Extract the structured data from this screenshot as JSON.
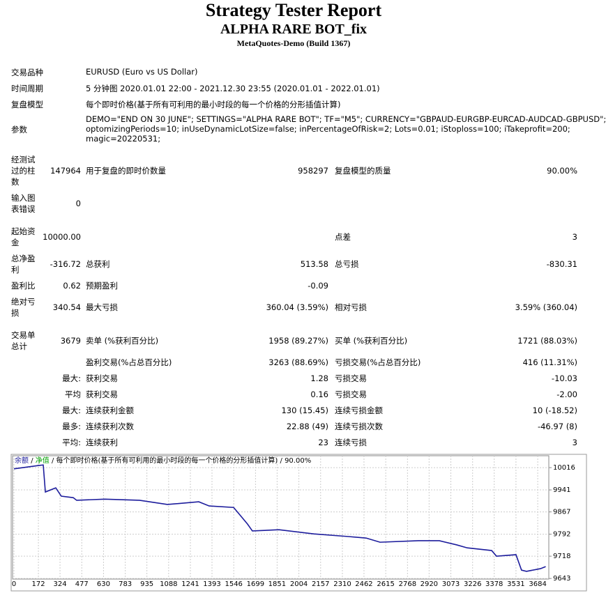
{
  "header": {
    "title": "Strategy Tester Report",
    "subtitle": "ALPHA RARE BOT_fix",
    "server": "MetaQuotes-Demo (Build 1367)"
  },
  "info": [
    {
      "label": "交易品种",
      "value": "EURUSD (Euro vs US Dollar)"
    },
    {
      "label": "时间周期",
      "value": "5 分钟图 2020.01.01 22:00 - 2021.12.30 23:55 (2020.01.01 - 2022.01.01)"
    },
    {
      "label": "复盘模型",
      "value": "每个即时价格(基于所有可利用的最小时段的每一个价格的分形插值计算)"
    },
    {
      "label": "参数",
      "lines": [
        "DEMO=\"END ON 30 JUNE\"; SETTINGS=\"ALPHA RARE BOT\"; TF=\"M5\"; CURRENCY=\"GBPAUD-EURGBP-EURCAD-AUDCAD-GBPUSD\";",
        "optomizingPeriods=10; inUseDynamicLotSize=false; inPercentageOfRisk=2; Lots=0.01; iStoploss=100; iTakeprofit=200;",
        "magic=20220531;"
      ]
    }
  ],
  "stats": [
    {
      "label1": "经测试过的柱数",
      "value1": "147964",
      "label2": "用于复盘的即时价数量",
      "value2": "958297",
      "label3": "复盘模型的质量",
      "value3": "90.00%"
    },
    {
      "label1": "输入图表错误",
      "value1": "0"
    },
    {
      "label1": "起始资金",
      "value1": "10000.00",
      "label3": "点差",
      "value3": "3"
    },
    {
      "label1": "总净盈利",
      "value1": "-316.72",
      "label2": "总获利",
      "value2": "513.58",
      "label3": "总亏损",
      "value3": "-830.31"
    },
    {
      "label1": "盈利比",
      "value1": "0.62",
      "label2": "预期盈利",
      "value2": "-0.09"
    },
    {
      "label1": "绝对亏损",
      "value1": "340.54",
      "label2": "最大亏损",
      "value2": "360.04 (3.59%)",
      "label3": "相对亏损",
      "value3": "3.59% (360.04)"
    },
    {
      "label1": "交易单总计",
      "value1": "3679",
      "label2": "卖单 (%获利百分比)",
      "value2": "1958 (89.27%)",
      "label3": "买单 (%获利百分比)",
      "value3": "1721 (88.03%)"
    },
    {
      "label2": "盈利交易(%占总百分比)",
      "value2": "3263 (88.69%)",
      "label3": "亏损交易(%占总百分比)",
      "value3": "416 (11.31%)"
    },
    {
      "value1": "最大:",
      "label2": "获利交易",
      "value2": "1.28",
      "label3": "亏损交易",
      "value3": "-10.03"
    },
    {
      "value1": "平均",
      "label2": "获利交易",
      "value2": "0.16",
      "label3": "亏损交易",
      "value3": "-2.00"
    },
    {
      "value1": "最大:",
      "label2": "连续获利金额",
      "value2": "130 (15.45)",
      "label3": "连续亏损金额",
      "value3": "10 (-18.52)"
    },
    {
      "value1": "最多:",
      "label2": "连续获利次数",
      "value2": "22.88 (49)",
      "label3": "连续亏损次数",
      "value3": "-46.97 (8)"
    },
    {
      "value1": "平均:",
      "label2": "连续获利",
      "value2": "23",
      "label3": "连续亏损",
      "value3": "3"
    }
  ],
  "chart_data": {
    "type": "line",
    "legend_separator": "/",
    "equity_label": "净值",
    "model_label": "每个即时价格(基于所有可利用的最小时段的每一个价格的分形插值计算)",
    "quality_label": "90.00%",
    "x": [
      0,
      172,
      206,
      221,
      294,
      333,
      417,
      441,
      638,
      883,
      1079,
      1300,
      1373,
      1545,
      1594,
      1643,
      1677,
      1864,
      2109,
      2354,
      2477,
      2575,
      2845,
      2992,
      3114,
      3188,
      3360,
      3394,
      3531,
      3570,
      3605,
      3703,
      3740
    ],
    "series": [
      {
        "name": "余额",
        "color": "#1c1c9c",
        "values": [
          10012,
          10023,
          10025,
          9934,
          9948,
          9920,
          9915,
          9906,
          9910,
          9906,
          9892,
          9901,
          9887,
          9882,
          9854,
          9826,
          9803,
          9807,
          9793,
          9784,
          9779,
          9765,
          9770,
          9770,
          9756,
          9746,
          9737,
          9718,
          9723,
          9671,
          9667,
          9676,
          9683
        ]
      }
    ],
    "equity_color": "#00a000",
    "xlim": [
      0,
      3762
    ],
    "ylim": [
      9641,
      10049
    ],
    "xticks": [
      0,
      172,
      324,
      477,
      630,
      783,
      935,
      1088,
      1241,
      1393,
      1546,
      1699,
      1851,
      2004,
      2157,
      2310,
      2462,
      2615,
      2768,
      2920,
      3073,
      3226,
      3378,
      3531,
      3684
    ],
    "yticks": [
      9643,
      9718,
      9792,
      9867,
      9941,
      10016
    ],
    "grid": true
  }
}
